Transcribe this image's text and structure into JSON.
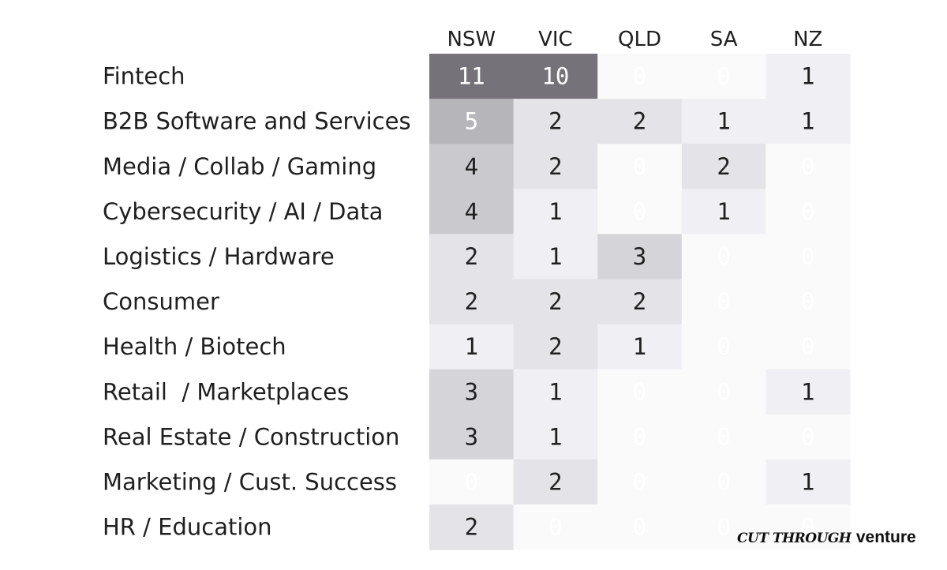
{
  "chart_data": {
    "type": "heatmap",
    "columns": [
      "NSW",
      "VIC",
      "QLD",
      "SA",
      "NZ"
    ],
    "rows": [
      "Fintech",
      "B2B Software and Services",
      "Media / Collab / Gaming",
      "Cybersecurity / AI / Data",
      "Logistics / Hardware",
      "Consumer",
      "Health / Biotech",
      "Retail  / Marketplaces",
      "Real Estate / Construction",
      "Marketing / Cust. Success",
      "HR / Education"
    ],
    "values": [
      [
        11,
        10,
        0,
        0,
        1
      ],
      [
        5,
        2,
        2,
        1,
        1
      ],
      [
        4,
        2,
        0,
        2,
        0
      ],
      [
        4,
        1,
        0,
        1,
        0
      ],
      [
        2,
        1,
        3,
        0,
        0
      ],
      [
        2,
        2,
        2,
        0,
        0
      ],
      [
        1,
        2,
        1,
        0,
        0
      ],
      [
        3,
        1,
        0,
        0,
        1
      ],
      [
        3,
        1,
        0,
        0,
        0
      ],
      [
        0,
        2,
        0,
        0,
        1
      ],
      [
        2,
        0,
        0,
        0,
        0
      ]
    ],
    "colors": {
      "zero": "#fafafb",
      "one": "#f0eff3",
      "two": "#e4e3e7",
      "three": "#d5d4d9",
      "four": "#cac9ce",
      "five": "#b6b5ba",
      "high": "#757279",
      "dark_text": "#1f1f1f",
      "light_text": "#ffffff"
    }
  },
  "watermark": {
    "part1": "CUT THROUGH",
    "part2": "venture"
  }
}
